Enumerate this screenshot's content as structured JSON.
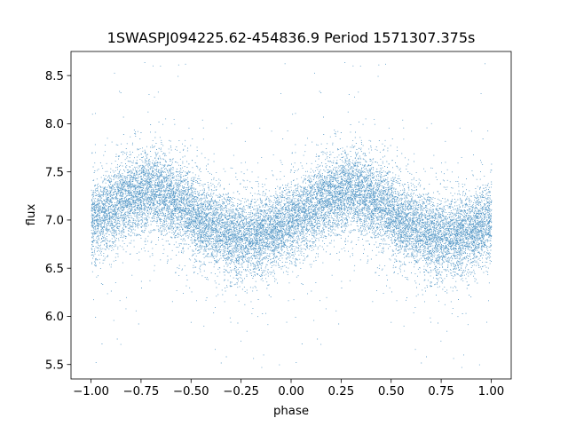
{
  "chart_data": {
    "type": "scatter",
    "title": "1SWASPJ094225.62-454836.9 Period 1571307.375s",
    "xlabel": "phase",
    "ylabel": "flux",
    "xlim": [
      -1.1,
      1.1
    ],
    "ylim": [
      5.35,
      8.75
    ],
    "xticks": [
      -1.0,
      -0.75,
      -0.5,
      -0.25,
      0.0,
      0.25,
      0.5,
      0.75,
      1.0
    ],
    "xtick_labels": [
      "−1.00",
      "−0.75",
      "−0.50",
      "−0.25",
      "0.00",
      "0.25",
      "0.50",
      "0.75",
      "1.00"
    ],
    "yticks": [
      5.5,
      6.0,
      6.5,
      7.0,
      7.5,
      8.0,
      8.5
    ],
    "ytick_labels": [
      "5.5",
      "6.0",
      "6.5",
      "7.0",
      "7.5",
      "8.0",
      "8.5"
    ],
    "grid": false,
    "legend": "none",
    "marker_color": "#1f77b4",
    "series": [
      {
        "description_of_shape": "phase-folded light curve shown twice (phase -1..0 and 0..1), mean flux ~7.05",
        "folded_curve": {
          "phase": [
            0.0,
            0.05,
            0.1,
            0.15,
            0.2,
            0.25,
            0.3,
            0.35,
            0.4,
            0.45,
            0.5,
            0.55,
            0.6,
            0.65,
            0.7,
            0.75,
            0.8,
            0.85,
            0.9,
            0.95,
            1.0
          ],
          "flux": [
            7.0,
            7.05,
            7.12,
            7.2,
            7.25,
            7.28,
            7.3,
            7.28,
            7.22,
            7.15,
            7.08,
            7.0,
            6.95,
            6.9,
            6.85,
            6.82,
            6.82,
            6.85,
            6.9,
            6.95,
            7.0
          ],
          "scatter_sigma": 0.2,
          "points_per_copy": 9000
        }
      }
    ]
  }
}
